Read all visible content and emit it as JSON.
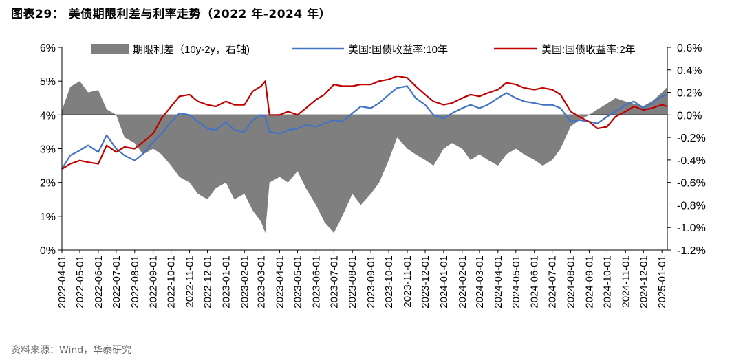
{
  "figure_title": "图表29： 美债期限利差与利率走势（2022 年-2024 年）",
  "source": "资料来源：Wind，华泰研究",
  "colors": {
    "spread": "#7f7f7f",
    "y10": "#4472c4",
    "y2": "#c00000",
    "axis": "#000000",
    "rule": "#7f9fbf"
  },
  "chart_data": {
    "type": "line",
    "legend": [
      "期限利差（10y-2y，右轴)",
      "美国:国债收益率:10年",
      "美国:国债收益率:2年"
    ],
    "legend_position": "top",
    "grid": false,
    "x_ticks": [
      "2022-04-01",
      "2022-05-01",
      "2022-06-01",
      "2022-07-01",
      "2022-08-01",
      "2022-09-01",
      "2022-10-01",
      "2022-11-01",
      "2022-12-01",
      "2023-01-01",
      "2023-02-01",
      "2023-03-01",
      "2023-04-01",
      "2023-05-01",
      "2023-06-01",
      "2023-07-01",
      "2023-08-01",
      "2023-09-01",
      "2023-10-01",
      "2023-11-01",
      "2023-12-01",
      "2024-01-01",
      "2024-02-01",
      "2024-03-01",
      "2024-04-01",
      "2024-05-01",
      "2024-06-01",
      "2024-07-01",
      "2024-08-01",
      "2024-09-01",
      "2024-10-01",
      "2024-11-01",
      "2024-12-01",
      "2025-01-01"
    ],
    "y_left": {
      "ticks": [
        "0%",
        "1%",
        "2%",
        "3%",
        "4%",
        "5%",
        "6%"
      ],
      "range": [
        0,
        6
      ]
    },
    "y_right": {
      "ticks": [
        "0.6%",
        "0.4%",
        "0.2%",
        "0.0%",
        "-0.2%",
        "-0.4%",
        "-0.6%",
        "-0.8%",
        "-1.0%",
        "-1.2%"
      ],
      "range": [
        -1.2,
        0.6
      ]
    },
    "x": [
      "2022-04-01",
      "2022-04-15",
      "2022-05-01",
      "2022-05-15",
      "2022-06-01",
      "2022-06-15",
      "2022-07-01",
      "2022-07-15",
      "2022-08-01",
      "2022-08-15",
      "2022-09-01",
      "2022-09-15",
      "2022-10-01",
      "2022-10-15",
      "2022-11-01",
      "2022-11-15",
      "2022-12-01",
      "2022-12-15",
      "2023-01-01",
      "2023-01-15",
      "2023-02-01",
      "2023-02-15",
      "2023-03-01",
      "2023-03-08",
      "2023-03-15",
      "2023-04-01",
      "2023-04-15",
      "2023-05-01",
      "2023-05-15",
      "2023-06-01",
      "2023-06-15",
      "2023-07-01",
      "2023-07-15",
      "2023-08-01",
      "2023-08-15",
      "2023-09-01",
      "2023-09-15",
      "2023-10-01",
      "2023-10-15",
      "2023-11-01",
      "2023-11-15",
      "2023-12-01",
      "2023-12-15",
      "2024-01-01",
      "2024-01-15",
      "2024-02-01",
      "2024-02-15",
      "2024-03-01",
      "2024-03-15",
      "2024-04-01",
      "2024-04-15",
      "2024-05-01",
      "2024-05-15",
      "2024-06-01",
      "2024-06-15",
      "2024-07-01",
      "2024-07-15",
      "2024-08-01",
      "2024-08-15",
      "2024-09-01",
      "2024-09-15",
      "2024-10-01",
      "2024-10-15",
      "2024-11-01",
      "2024-11-15",
      "2024-12-01",
      "2024-12-15",
      "2025-01-01",
      "2025-01-10"
    ],
    "series": [
      {
        "name": "期限利差（10y-2y，右轴)",
        "axis": "right",
        "type": "area",
        "values": [
          0.04,
          0.25,
          0.3,
          0.2,
          0.22,
          0.05,
          0.0,
          -0.2,
          -0.25,
          -0.35,
          -0.3,
          -0.35,
          -0.45,
          -0.55,
          -0.6,
          -0.7,
          -0.75,
          -0.65,
          -0.6,
          -0.75,
          -0.7,
          -0.85,
          -0.95,
          -1.05,
          -0.6,
          -0.55,
          -0.6,
          -0.5,
          -0.65,
          -0.8,
          -0.95,
          -1.05,
          -0.9,
          -0.7,
          -0.8,
          -0.7,
          -0.6,
          -0.4,
          -0.2,
          -0.3,
          -0.35,
          -0.4,
          -0.45,
          -0.3,
          -0.25,
          -0.3,
          -0.4,
          -0.35,
          -0.4,
          -0.45,
          -0.35,
          -0.3,
          -0.35,
          -0.4,
          -0.45,
          -0.4,
          -0.3,
          -0.1,
          -0.05,
          0.0,
          0.05,
          0.1,
          0.15,
          0.12,
          0.1,
          0.08,
          0.12,
          0.2,
          0.25
        ]
      },
      {
        "name": "美国:国债收益率:10年",
        "axis": "left",
        "type": "line",
        "values": [
          2.4,
          2.8,
          2.95,
          3.1,
          2.9,
          3.4,
          3.0,
          2.8,
          2.65,
          2.85,
          3.2,
          3.45,
          3.8,
          4.05,
          4.0,
          3.8,
          3.6,
          3.55,
          3.8,
          3.55,
          3.5,
          3.85,
          4.0,
          3.95,
          3.5,
          3.45,
          3.55,
          3.6,
          3.7,
          3.65,
          3.75,
          3.85,
          3.8,
          4.05,
          4.25,
          4.2,
          4.35,
          4.6,
          4.8,
          4.85,
          4.5,
          4.3,
          4.0,
          3.9,
          4.05,
          4.2,
          4.3,
          4.2,
          4.3,
          4.5,
          4.65,
          4.5,
          4.4,
          4.35,
          4.3,
          4.3,
          4.2,
          3.8,
          3.85,
          3.8,
          3.75,
          3.95,
          4.1,
          4.3,
          4.4,
          4.2,
          4.35,
          4.55,
          4.6
        ]
      },
      {
        "name": "美国:国债收益率:2年",
        "axis": "left",
        "type": "line",
        "values": [
          2.4,
          2.55,
          2.65,
          2.6,
          2.55,
          3.1,
          2.9,
          3.05,
          3.0,
          3.2,
          3.45,
          3.9,
          4.25,
          4.55,
          4.6,
          4.4,
          4.3,
          4.25,
          4.4,
          4.3,
          4.3,
          4.7,
          4.85,
          5.0,
          4.0,
          4.0,
          4.1,
          4.0,
          4.2,
          4.45,
          4.6,
          4.9,
          4.85,
          4.85,
          4.9,
          4.9,
          5.0,
          5.05,
          5.15,
          5.1,
          4.85,
          4.6,
          4.4,
          4.3,
          4.35,
          4.5,
          4.6,
          4.55,
          4.65,
          4.75,
          4.95,
          4.9,
          4.8,
          4.75,
          4.8,
          4.75,
          4.6,
          4.1,
          3.95,
          3.8,
          3.6,
          3.65,
          3.95,
          4.1,
          4.25,
          4.15,
          4.2,
          4.3,
          4.25
        ]
      }
    ]
  }
}
